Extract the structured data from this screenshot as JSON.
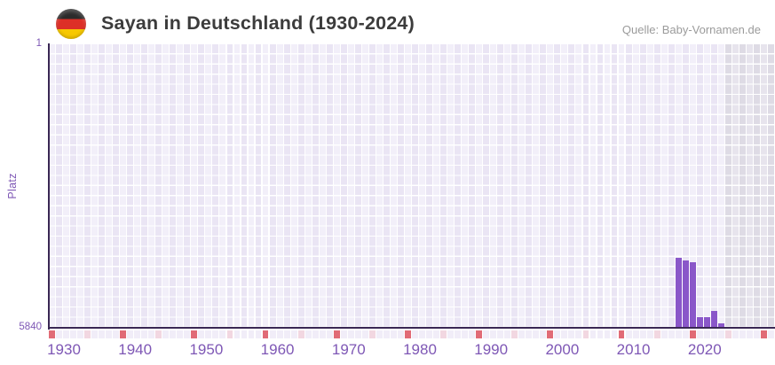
{
  "header": {
    "title": "Sayan in Deutschland (1930-2024)",
    "source": "Quelle: Baby-Vornamen.de",
    "flag_colors": [
      "#2b2b2b",
      "#dd2f27",
      "#f7c800"
    ]
  },
  "chart_data": {
    "type": "bar",
    "title": "Sayan in Deutschland (1930-2024)",
    "ylabel": "Platz",
    "y_axis": {
      "min": 1,
      "max": 5840,
      "inverted": true,
      "top_label": "1",
      "bottom_label": "5840"
    },
    "x_axis": {
      "start_year": 1930,
      "visible_end_year": 2032,
      "data_end_year": 2024,
      "tick_years": [
        1930,
        1940,
        1950,
        1960,
        1970,
        1980,
        1990,
        2000,
        2010,
        2020
      ]
    },
    "series": [
      {
        "name": "Platz",
        "points": [
          {
            "year": 2018,
            "rank": 4390
          },
          {
            "year": 2019,
            "rank": 4450
          },
          {
            "year": 2020,
            "rank": 4490
          },
          {
            "year": 2021,
            "rank": 5620
          },
          {
            "year": 2022,
            "rank": 5630
          },
          {
            "year": 2023,
            "rank": 5490
          },
          {
            "year": 2024,
            "rank": 5750
          }
        ]
      }
    ],
    "legend": null,
    "grid": "white cell grid, one column per year, marker strip below axis every 5 years",
    "colors": {
      "bar": "#8a57c9",
      "axis_line": "#3a2754",
      "tick_label": "#7e57b5",
      "column_light": "#f2eff9",
      "column_dark": "#eae5f4",
      "future_column_light": "#e7e4ed",
      "future_column_dark": "#dedbe5",
      "strip_base": "#f1edf8",
      "strip_decade": "#e16b76",
      "strip_half_decade": "#f2d7e1",
      "title_text": "#3c3c3c",
      "source_text": "#9b9b9b"
    }
  }
}
